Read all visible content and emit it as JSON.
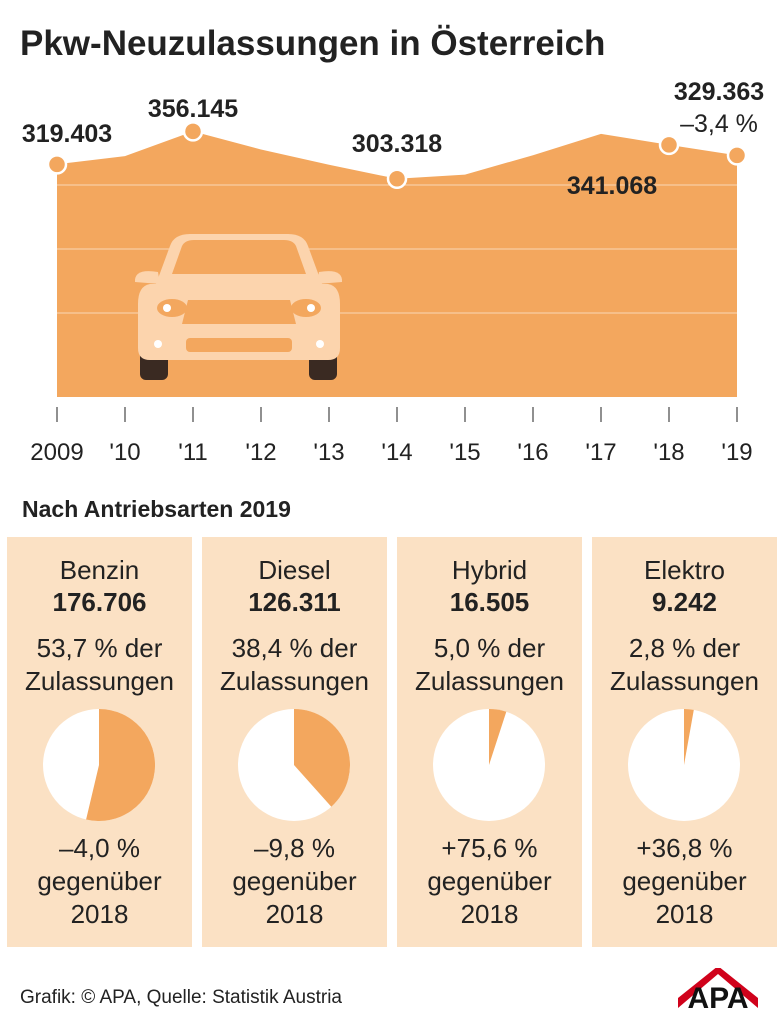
{
  "title": "Pkw-Neuzulassungen in Österreich",
  "colors": {
    "area": "#f3a75e",
    "area_dark": "#e89b4e",
    "panel": "#fbe1c4",
    "pie_empty": "#ffffff",
    "text": "#222222",
    "logo": "#d0021b",
    "car": "#fcd4ad",
    "tire": "#3a2a22"
  },
  "chart_data": [
    {
      "type": "area",
      "title": "Pkw-Neuzulassungen in Österreich",
      "x": [
        "2009",
        "'10",
        "'11",
        "'12",
        "'13",
        "'14",
        "'15",
        "'16",
        "'17",
        "'18",
        "'19"
      ],
      "values": [
        319403,
        328600,
        356145,
        336000,
        319000,
        303318,
        308000,
        329600,
        353300,
        341068,
        329363
      ],
      "labeled_points": [
        {
          "index": 0,
          "label": "319.403"
        },
        {
          "index": 2,
          "label": "356.145"
        },
        {
          "index": 5,
          "label": "303.318"
        },
        {
          "index": 9,
          "label": "341.068"
        },
        {
          "index": 10,
          "label": "329.363"
        }
      ],
      "change_label": "–3,4 %",
      "ylim": [
        0,
        380000
      ],
      "grid": true,
      "xlabel": "",
      "ylabel": ""
    },
    {
      "type": "pie",
      "title": "Nach Antriebsarten 2019",
      "categories": [
        "Benzin",
        "Diesel",
        "Hybrid",
        "Elektro"
      ],
      "values": [
        176706,
        126311,
        16505,
        9242
      ],
      "share_percent": [
        53.7,
        38.4,
        5.0,
        2.8
      ],
      "change_vs_2018_percent": [
        -4.0,
        -9.8,
        75.6,
        36.8
      ]
    }
  ],
  "line_labels": {
    "p2009": "319.403",
    "p2011": "356.145",
    "p2014": "303.318",
    "p2018": "341.068",
    "p2019": "329.363",
    "change": "–3,4 %"
  },
  "section_title": "Nach Antriebsarten 2019",
  "cards": [
    {
      "name": "Benzin",
      "value": "176.706",
      "share_line1": "53,7 % der",
      "share_line2": "Zulassungen",
      "share": 53.7,
      "change_line1": "–4,0 %",
      "change_line2": "gegenüber",
      "change_line3": "2018"
    },
    {
      "name": "Diesel",
      "value": "126.311",
      "share_line1": "38,4 % der",
      "share_line2": "Zulassungen",
      "share": 38.4,
      "change_line1": "–9,8 %",
      "change_line2": "gegenüber",
      "change_line3": "2018"
    },
    {
      "name": "Hybrid",
      "value": "16.505",
      "share_line1": "5,0 % der",
      "share_line2": "Zulassungen",
      "share": 5.0,
      "change_line1": "+75,6 %",
      "change_line2": "gegenüber",
      "change_line3": "2018"
    },
    {
      "name": "Elektro",
      "value": "9.242",
      "share_line1": "2,8 % der",
      "share_line2": "Zulassungen",
      "share": 2.8,
      "change_line1": "+36,8 %",
      "change_line2": "gegenüber",
      "change_line3": "2018"
    }
  ],
  "footer": "Grafik: © APA, Quelle: Statistik Austria",
  "logo_text": "APA"
}
